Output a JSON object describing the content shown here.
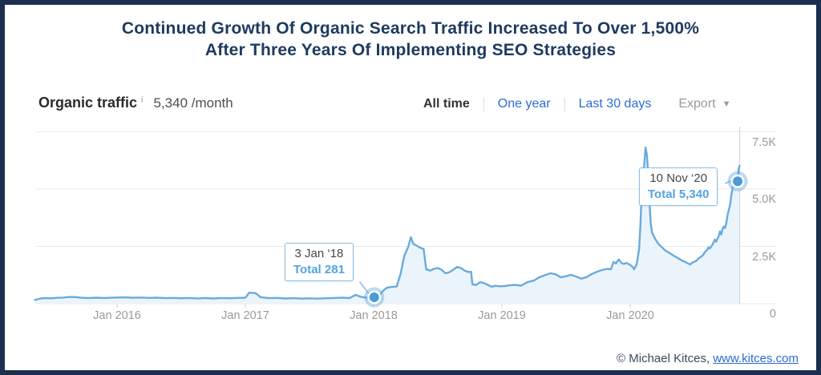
{
  "title": {
    "line1": "Continued Growth Of Organic Search Traffic Increased To Over 1,500%",
    "line2": "After Three Years Of Implementing SEO Strategies"
  },
  "toolbar": {
    "metric_label": "Organic traffic",
    "info_icon": "i",
    "metric_value": "5,340 /month",
    "filters": {
      "all_time": "All time",
      "one_year": "One year",
      "last_30_days": "Last 30 days"
    },
    "export_label": "Export",
    "caret_icon": "▼"
  },
  "tooltips": [
    {
      "date": "3 Jan ‘18",
      "total": "Total 281"
    },
    {
      "date": "10 Nov ‘20",
      "total": "Total 5,340"
    }
  ],
  "footer": {
    "copyright": "© Michael Kitces, ",
    "link": "www.kitces.com"
  },
  "colors": {
    "frame_border": "#1b2f4e",
    "title": "#1d3a5f",
    "link_blue": "#2b6cd9",
    "line": "#68abdf",
    "area_fill": "#ecf4fb",
    "marker": "#4c9bd5",
    "tooltip_border": "#88bce8",
    "tooltip_total": "#53a4e0",
    "grid": "#e9e9e9",
    "axis_text": "#9b9b9b",
    "now_line": "#cfcfcf"
  },
  "chart_data": {
    "type": "area",
    "title": "Organic traffic over time",
    "legend": null,
    "grid": true,
    "y_axis": {
      "side": "right",
      "range": [
        0,
        7800
      ],
      "ticks": [
        {
          "label": "7.5K",
          "value": 7500
        },
        {
          "label": "5.0K",
          "value": 5000
        },
        {
          "label": "2.5K",
          "value": 2500
        },
        {
          "label": "0",
          "value": 0
        }
      ]
    },
    "x_axis": {
      "range_years": [
        2015.36,
        2020.86
      ],
      "ticks": [
        {
          "label": "Jan 2016",
          "year": 2016
        },
        {
          "label": "Jan 2017",
          "year": 2017
        },
        {
          "label": "Jan 2018",
          "year": 2018
        },
        {
          "label": "Jan 2019",
          "year": 2019
        },
        {
          "label": "Jan 2020",
          "year": 2020
        }
      ]
    },
    "highlights": [
      {
        "date": "3 Jan ‘18",
        "year": 2018.005,
        "value": 281
      },
      {
        "date": "10 Nov ‘20",
        "year": 2020.838,
        "value": 5340
      }
    ],
    "series": [
      {
        "name": "Organic traffic",
        "points": [
          [
            2015.36,
            160
          ],
          [
            2015.4,
            225
          ],
          [
            2015.44,
            245
          ],
          [
            2015.48,
            235
          ],
          [
            2015.53,
            255
          ],
          [
            2015.58,
            265
          ],
          [
            2015.63,
            295
          ],
          [
            2015.68,
            285
          ],
          [
            2015.72,
            260
          ],
          [
            2015.78,
            250
          ],
          [
            2015.84,
            262
          ],
          [
            2015.9,
            248
          ],
          [
            2015.95,
            258
          ],
          [
            2016.0,
            268
          ],
          [
            2016.06,
            278
          ],
          [
            2016.12,
            258
          ],
          [
            2016.19,
            268
          ],
          [
            2016.25,
            252
          ],
          [
            2016.31,
            262
          ],
          [
            2016.38,
            242
          ],
          [
            2016.44,
            252
          ],
          [
            2016.5,
            238
          ],
          [
            2016.56,
            250
          ],
          [
            2016.63,
            232
          ],
          [
            2016.69,
            245
          ],
          [
            2016.75,
            228
          ],
          [
            2016.81,
            248
          ],
          [
            2016.88,
            238
          ],
          [
            2016.94,
            252
          ],
          [
            2017.0,
            258
          ],
          [
            2017.03,
            480
          ],
          [
            2017.08,
            460
          ],
          [
            2017.12,
            280
          ],
          [
            2017.19,
            240
          ],
          [
            2017.25,
            252
          ],
          [
            2017.31,
            228
          ],
          [
            2017.38,
            240
          ],
          [
            2017.44,
            222
          ],
          [
            2017.5,
            235
          ],
          [
            2017.56,
            220
          ],
          [
            2017.63,
            238
          ],
          [
            2017.69,
            250
          ],
          [
            2017.75,
            262
          ],
          [
            2017.81,
            245
          ],
          [
            2017.86,
            380
          ],
          [
            2017.9,
            300
          ],
          [
            2017.95,
            262
          ],
          [
            2018.005,
            281
          ],
          [
            2018.04,
            330
          ],
          [
            2018.07,
            540
          ],
          [
            2018.1,
            690
          ],
          [
            2018.14,
            730
          ],
          [
            2018.18,
            750
          ],
          [
            2018.21,
            1300
          ],
          [
            2018.24,
            2100
          ],
          [
            2018.27,
            2480
          ],
          [
            2018.29,
            2900
          ],
          [
            2018.31,
            2600
          ],
          [
            2018.33,
            2550
          ],
          [
            2018.36,
            2450
          ],
          [
            2018.39,
            2380
          ],
          [
            2018.41,
            1500
          ],
          [
            2018.44,
            1440
          ],
          [
            2018.47,
            1520
          ],
          [
            2018.5,
            1560
          ],
          [
            2018.53,
            1480
          ],
          [
            2018.56,
            1330
          ],
          [
            2018.59,
            1370
          ],
          [
            2018.62,
            1480
          ],
          [
            2018.65,
            1600
          ],
          [
            2018.68,
            1560
          ],
          [
            2018.71,
            1440
          ],
          [
            2018.74,
            1380
          ],
          [
            2018.76,
            1390
          ],
          [
            2018.77,
            840
          ],
          [
            2018.8,
            820
          ],
          [
            2018.83,
            940
          ],
          [
            2018.86,
            900
          ],
          [
            2018.89,
            820
          ],
          [
            2018.92,
            740
          ],
          [
            2018.95,
            780
          ],
          [
            2018.98,
            760
          ],
          [
            2019.02,
            770
          ],
          [
            2019.06,
            800
          ],
          [
            2019.1,
            820
          ],
          [
            2019.15,
            790
          ],
          [
            2019.2,
            940
          ],
          [
            2019.25,
            1010
          ],
          [
            2019.29,
            1150
          ],
          [
            2019.33,
            1230
          ],
          [
            2019.38,
            1330
          ],
          [
            2019.42,
            1280
          ],
          [
            2019.46,
            1150
          ],
          [
            2019.5,
            1200
          ],
          [
            2019.54,
            1260
          ],
          [
            2019.58,
            1180
          ],
          [
            2019.62,
            1090
          ],
          [
            2019.66,
            1160
          ],
          [
            2019.7,
            1290
          ],
          [
            2019.74,
            1390
          ],
          [
            2019.78,
            1470
          ],
          [
            2019.82,
            1520
          ],
          [
            2019.85,
            1500
          ],
          [
            2019.87,
            1820
          ],
          [
            2019.89,
            1760
          ],
          [
            2019.91,
            1930
          ],
          [
            2019.93,
            1790
          ],
          [
            2019.95,
            1730
          ],
          [
            2019.97,
            1780
          ],
          [
            2020.0,
            1690
          ],
          [
            2020.02,
            1610
          ],
          [
            2020.03,
            1500
          ],
          [
            2020.05,
            1710
          ],
          [
            2020.07,
            2400
          ],
          [
            2020.08,
            3460
          ],
          [
            2020.09,
            4860
          ],
          [
            2020.11,
            6080
          ],
          [
            2020.12,
            6820
          ],
          [
            2020.13,
            6500
          ],
          [
            2020.14,
            5700
          ],
          [
            2020.15,
            4500
          ],
          [
            2020.16,
            3530
          ],
          [
            2020.17,
            3110
          ],
          [
            2020.19,
            2870
          ],
          [
            2020.21,
            2690
          ],
          [
            2020.23,
            2550
          ],
          [
            2020.25,
            2450
          ],
          [
            2020.27,
            2340
          ],
          [
            2020.29,
            2270
          ],
          [
            2020.31,
            2200
          ],
          [
            2020.33,
            2130
          ],
          [
            2020.35,
            2060
          ],
          [
            2020.37,
            2000
          ],
          [
            2020.39,
            1930
          ],
          [
            2020.41,
            1860
          ],
          [
            2020.43,
            1820
          ],
          [
            2020.45,
            1760
          ],
          [
            2020.47,
            1710
          ],
          [
            2020.48,
            1780
          ],
          [
            2020.5,
            1830
          ],
          [
            2020.52,
            1890
          ],
          [
            2020.53,
            1960
          ],
          [
            2020.55,
            2040
          ],
          [
            2020.57,
            2130
          ],
          [
            2020.58,
            2240
          ],
          [
            2020.6,
            2350
          ],
          [
            2020.61,
            2460
          ],
          [
            2020.62,
            2410
          ],
          [
            2020.64,
            2560
          ],
          [
            2020.65,
            2680
          ],
          [
            2020.66,
            2800
          ],
          [
            2020.67,
            2700
          ],
          [
            2020.69,
            2950
          ],
          [
            2020.7,
            3150
          ],
          [
            2020.71,
            3020
          ],
          [
            2020.72,
            3260
          ],
          [
            2020.73,
            3370
          ],
          [
            2020.74,
            3300
          ],
          [
            2020.75,
            3540
          ],
          [
            2020.76,
            3890
          ],
          [
            2020.78,
            4350
          ],
          [
            2020.79,
            4780
          ],
          [
            2020.8,
            5100
          ],
          [
            2020.81,
            5150
          ],
          [
            2020.82,
            5280
          ],
          [
            2020.838,
            5340
          ],
          [
            2020.845,
            5870
          ],
          [
            2020.853,
            6020
          ]
        ]
      }
    ]
  }
}
